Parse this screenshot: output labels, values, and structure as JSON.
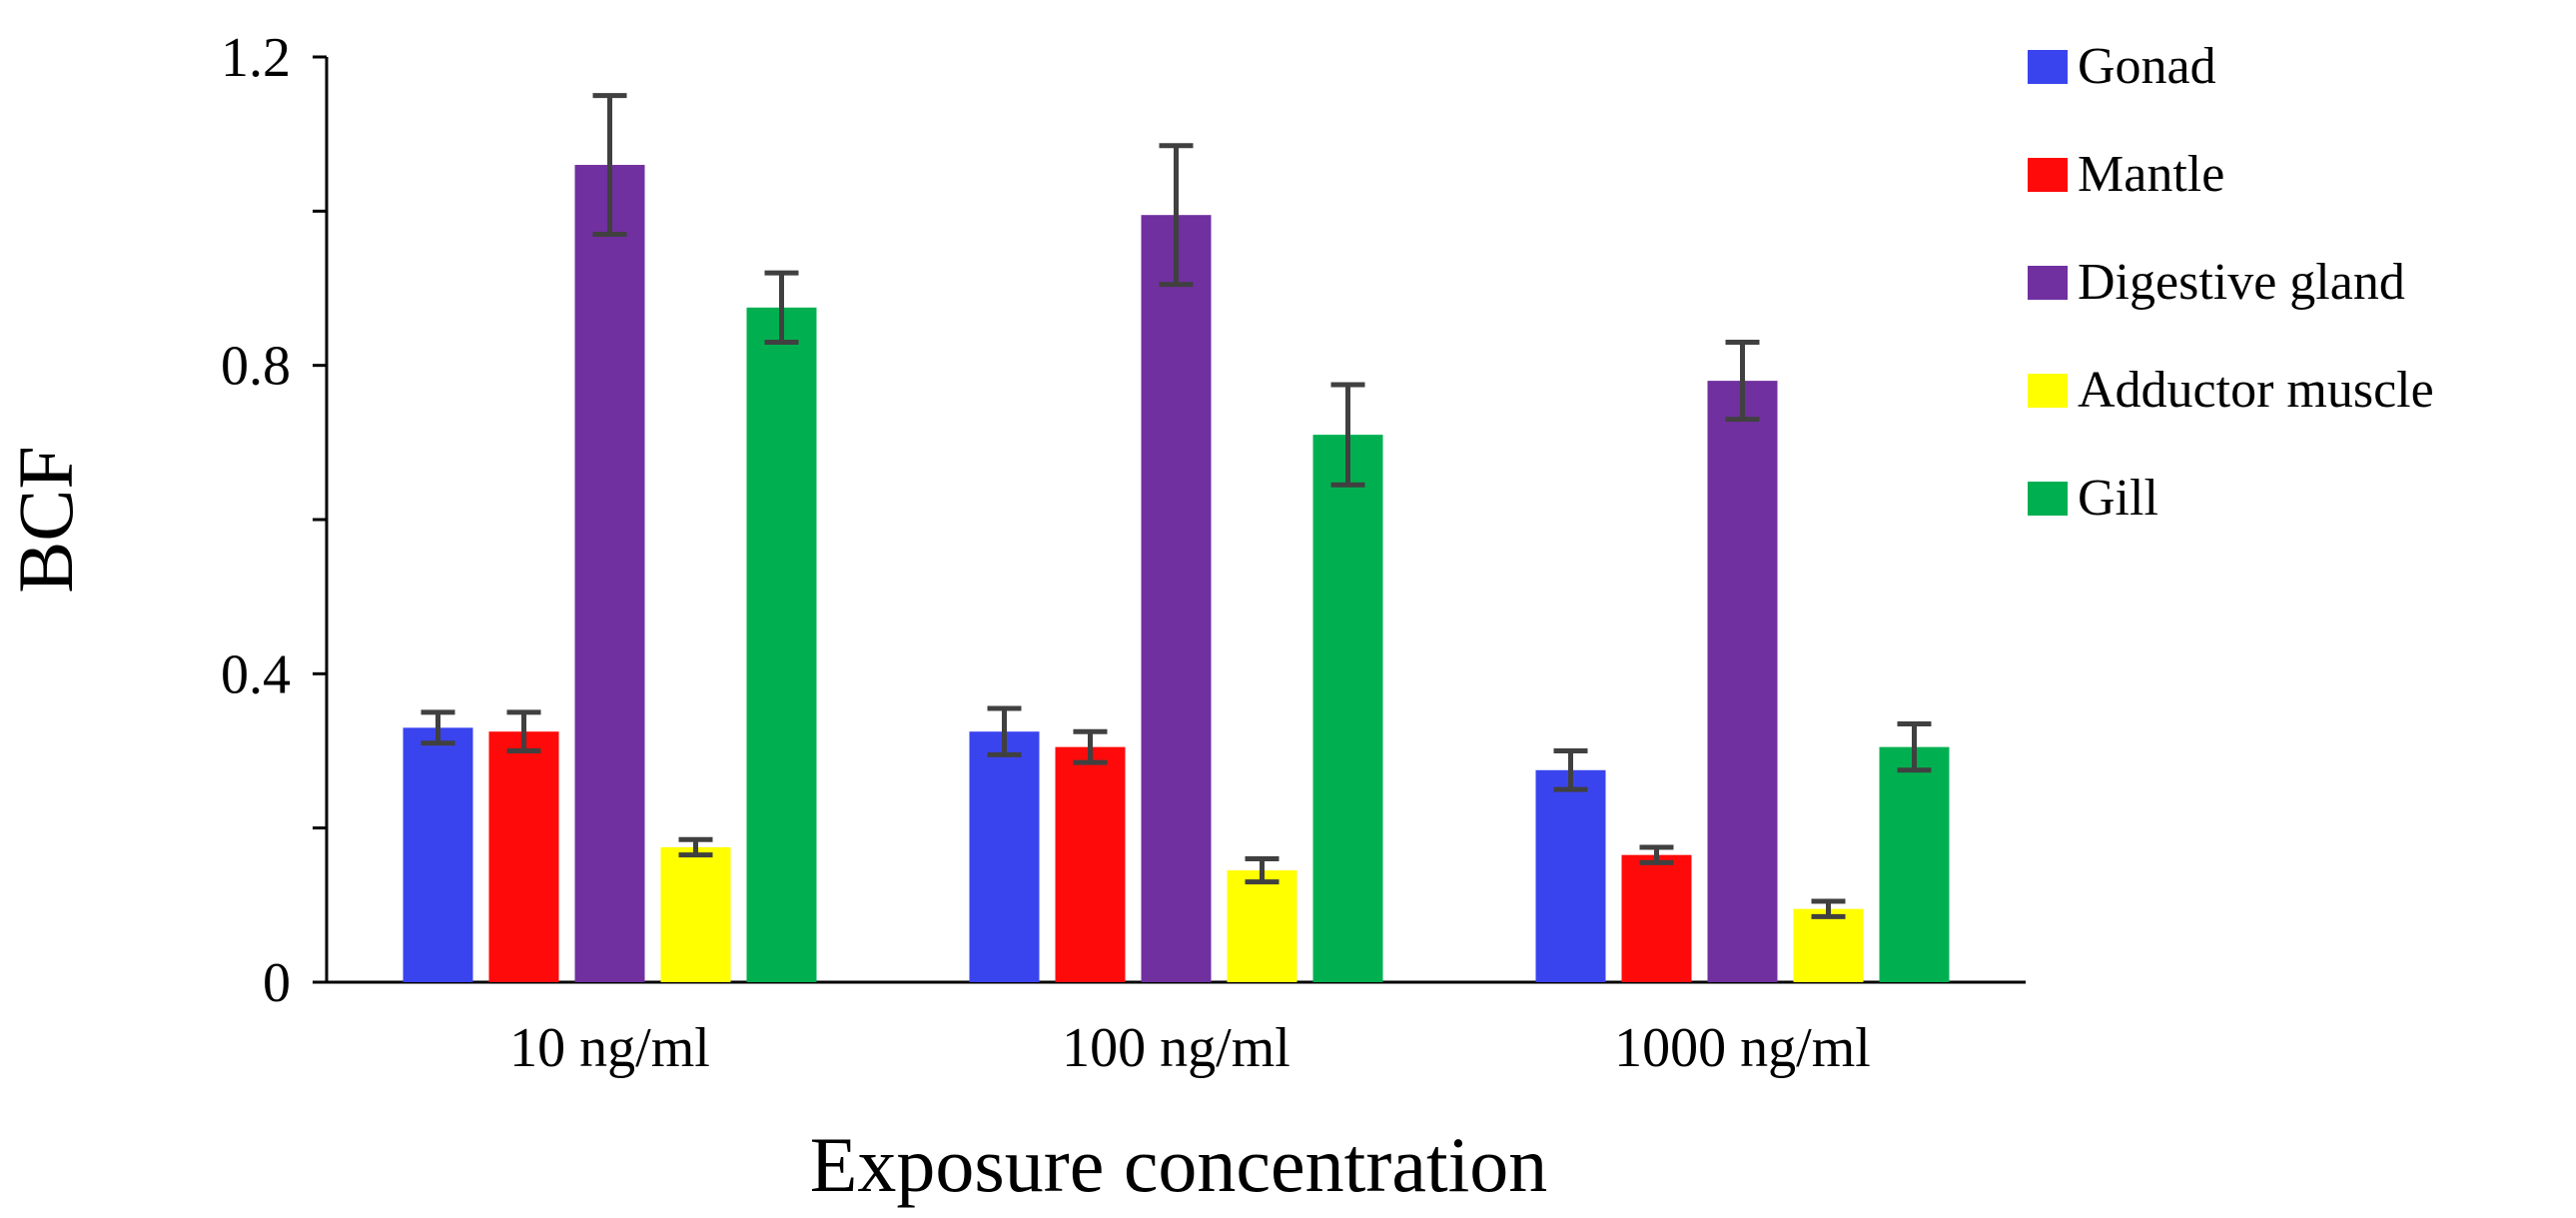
{
  "chart_data": {
    "type": "bar",
    "title": "",
    "xlabel": "Exposure concentration",
    "ylabel": "BCF",
    "ylim": [
      0,
      1.2
    ],
    "yticks": [
      0,
      0.2,
      0.4,
      0.6,
      0.8,
      1.0,
      1.2
    ],
    "ytick_labels": [
      "0",
      "",
      "0.4",
      "",
      "0.8",
      "",
      "1.2"
    ],
    "grid": false,
    "legend_position": "right",
    "categories": [
      "10 ng/ml",
      "100 ng/ml",
      "1000 ng/ml"
    ],
    "series": [
      {
        "name": "Gonad",
        "color": "#3a44ee",
        "values": [
          0.33,
          0.325,
          0.275
        ],
        "errors": [
          0.02,
          0.03,
          0.025
        ]
      },
      {
        "name": "Mantle",
        "color": "#ff0a0a",
        "values": [
          0.325,
          0.305,
          0.165
        ],
        "errors": [
          0.025,
          0.02,
          0.01
        ]
      },
      {
        "name": "Digestive gland",
        "color": "#7030a0",
        "values": [
          1.06,
          0.995,
          0.78
        ],
        "errors": [
          0.09,
          0.09,
          0.05
        ]
      },
      {
        "name": "Adductor muscle",
        "color": "#ffff00",
        "values": [
          0.175,
          0.145,
          0.095
        ],
        "errors": [
          0.01,
          0.015,
          0.01
        ]
      },
      {
        "name": "Gill",
        "color": "#00b050",
        "values": [
          0.875,
          0.71,
          0.305
        ],
        "errors": [
          0.045,
          0.065,
          0.03
        ]
      }
    ]
  }
}
